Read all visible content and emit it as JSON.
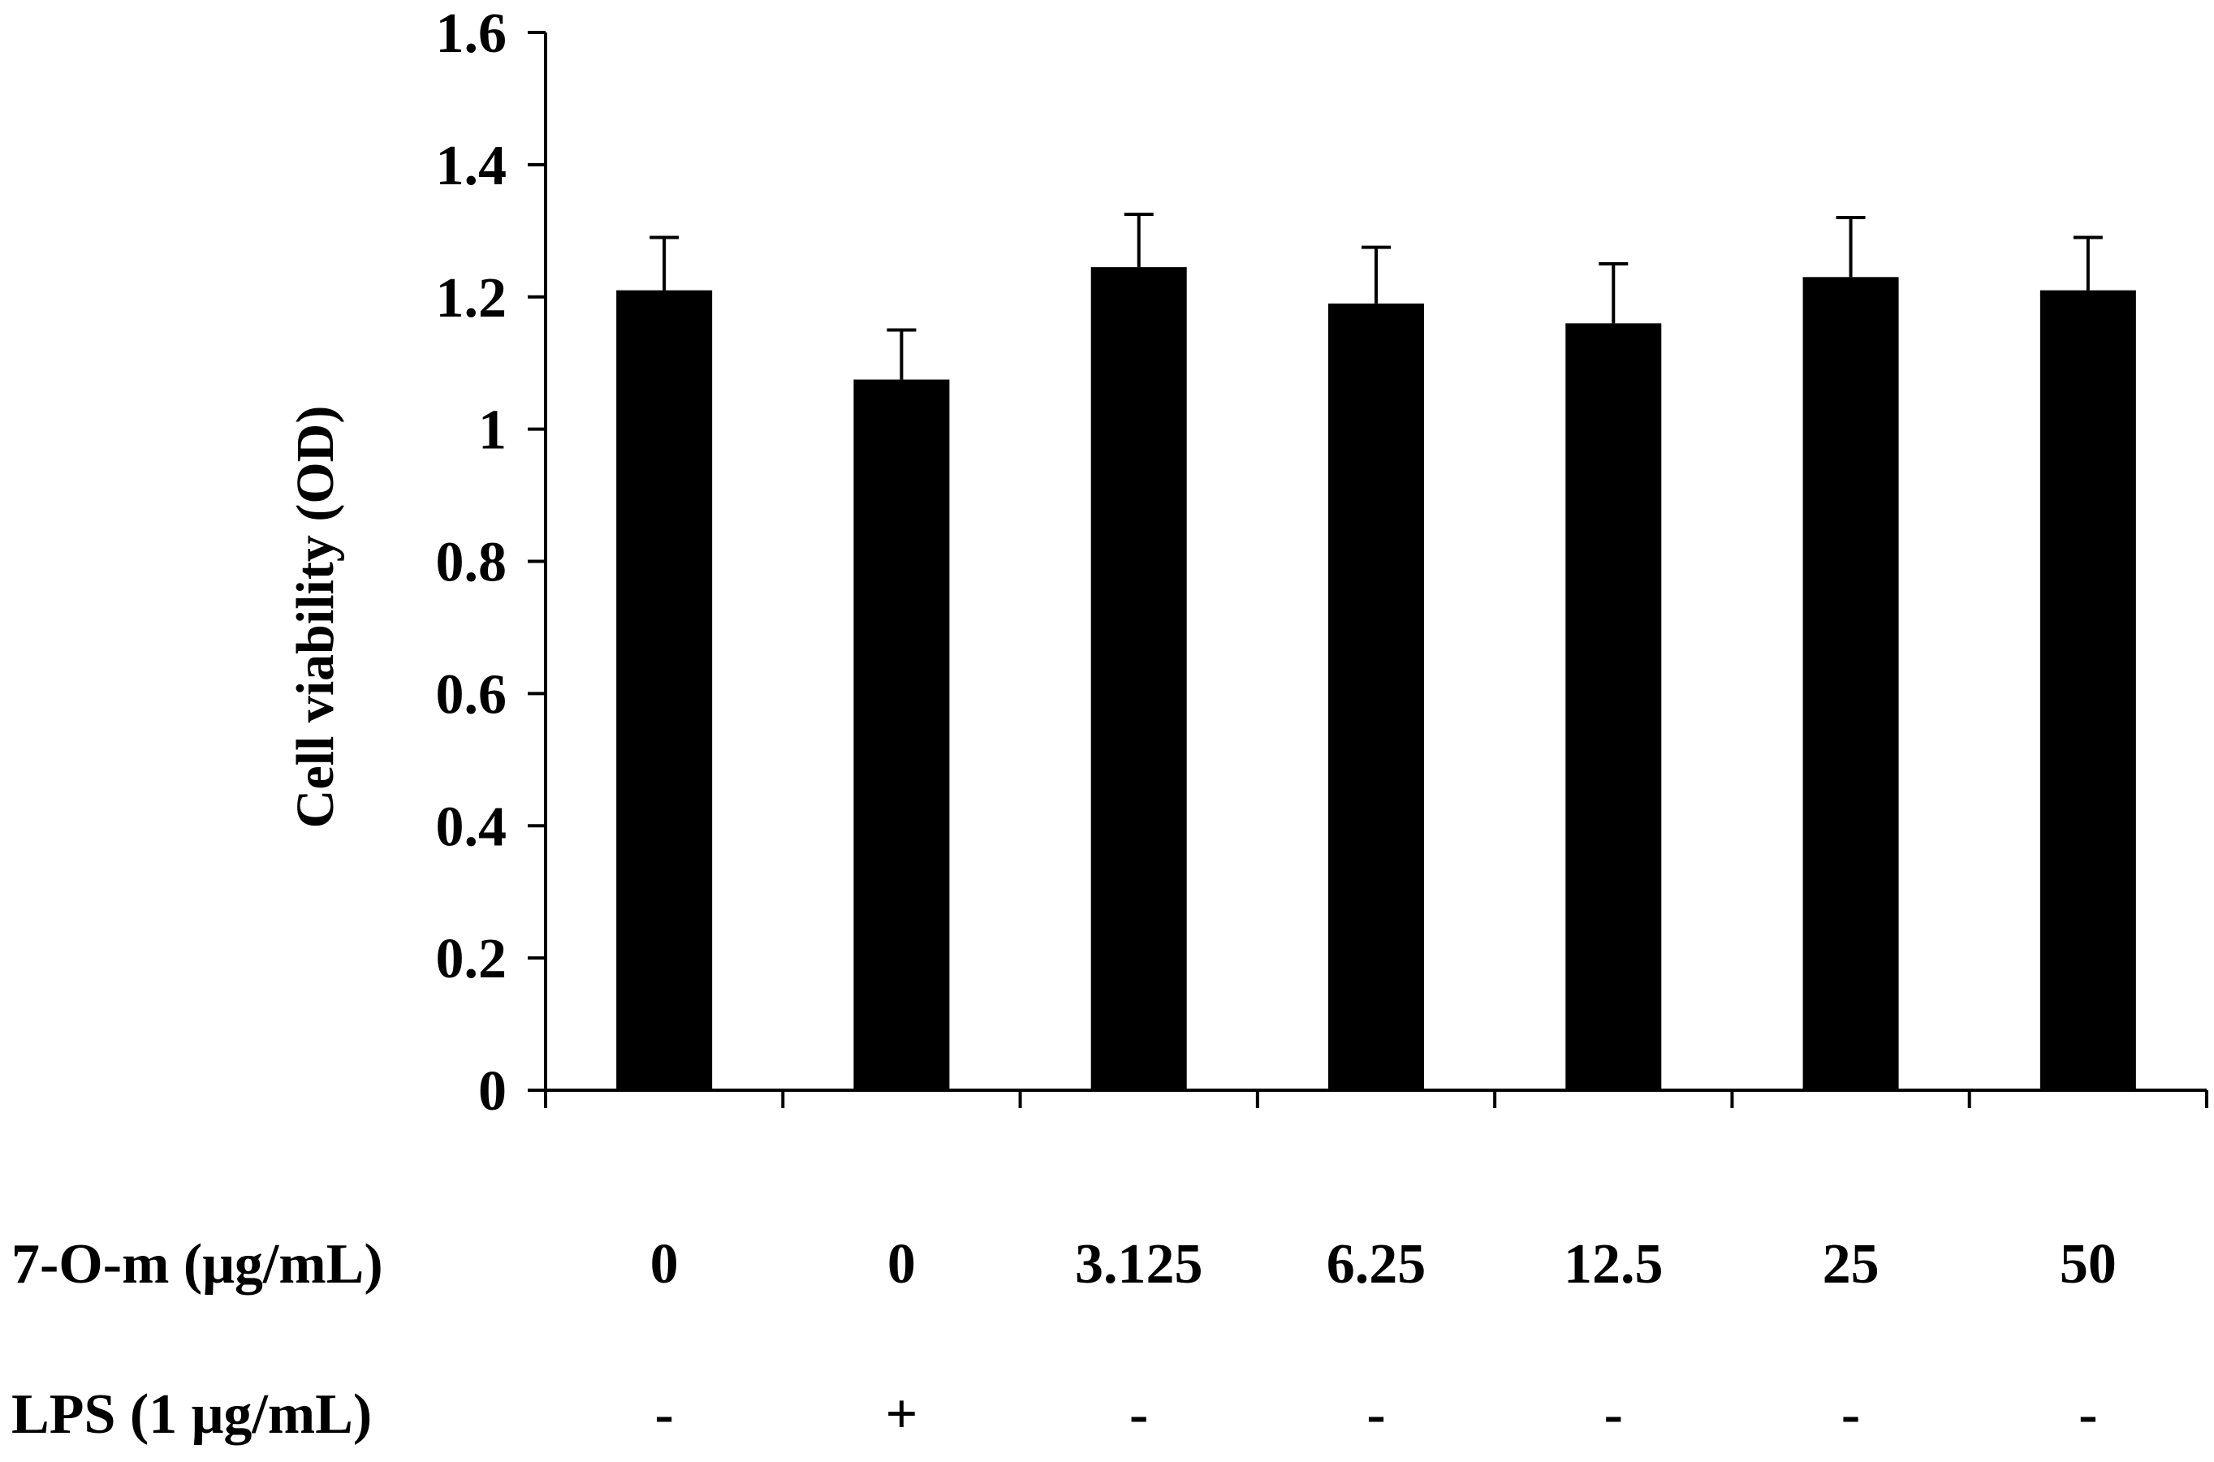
{
  "chart_data": {
    "type": "bar",
    "categories": [
      "0",
      "0",
      "3.125",
      "6.25",
      "12.5",
      "25",
      "50"
    ],
    "values": [
      1.21,
      1.075,
      1.245,
      1.19,
      1.16,
      1.23,
      1.21
    ],
    "errors": [
      0.08,
      0.075,
      0.08,
      0.085,
      0.09,
      0.09,
      0.08
    ],
    "title": "",
    "xlabel": "",
    "ylabel": "Cell viability (OD)",
    "ylim": [
      0,
      1.6
    ],
    "yticks": [
      0,
      0.2,
      0.4,
      0.6,
      0.8,
      1,
      1.2,
      1.4,
      1.6
    ],
    "ytick_labels": [
      "0",
      "0.2",
      "0.4",
      "0.6",
      "0.8",
      "1",
      "1.2",
      "1.4",
      "1.6"
    ],
    "grid": false,
    "bar_color": "#000000",
    "treatment_rows": [
      {
        "label": "7-O-m (μg/mL)",
        "values": [
          "0",
          "0",
          "3.125",
          "6.25",
          "12.5",
          "25",
          "50"
        ]
      },
      {
        "label": "LPS (1 μg/mL)",
        "values": [
          "-",
          "+",
          "-",
          "-",
          "-",
          "-",
          "-"
        ]
      }
    ]
  }
}
